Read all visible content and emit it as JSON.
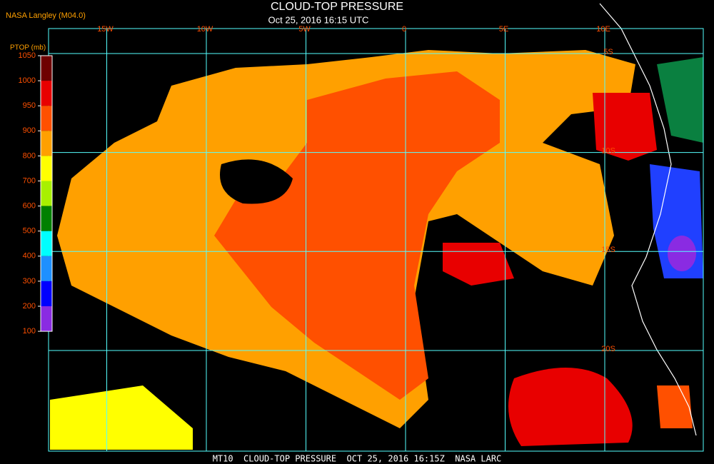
{
  "header": {
    "source": "NASA Langley (M04.0)",
    "title": "CLOUD-TOP PRESSURE",
    "subtitle": "Oct 25, 2016 16:15 UTC"
  },
  "colorbar": {
    "label": "PTOP (mb)",
    "ticks": [
      1050,
      1000,
      950,
      900,
      800,
      700,
      600,
      500,
      400,
      300,
      200,
      100
    ],
    "colors": [
      "#6e0000",
      "#e80000",
      "#ff5000",
      "#ffa000",
      "#ffff00",
      "#a8f000",
      "#008000",
      "#00ffff",
      "#1e90ff",
      "#0000ff",
      "#8a2be2"
    ]
  },
  "grid": {
    "lon": [
      {
        "value": -15,
        "label": "15W"
      },
      {
        "value": -10,
        "label": "10W"
      },
      {
        "value": -5,
        "label": "5W"
      },
      0,
      {
        "value": 5,
        "label": "5E"
      },
      {
        "value": 10,
        "label": "10E"
      }
    ],
    "lat": [
      {
        "value": -5,
        "label": "5S"
      },
      {
        "value": -10,
        "label": "10S"
      },
      {
        "value": -15,
        "label": "15S"
      },
      {
        "value": -20,
        "label": "20S"
      }
    ]
  },
  "footer": "MT10  CLOUD-TOP PRESSURE  OCT 25, 2016 16:15Z  NASA LARC"
}
